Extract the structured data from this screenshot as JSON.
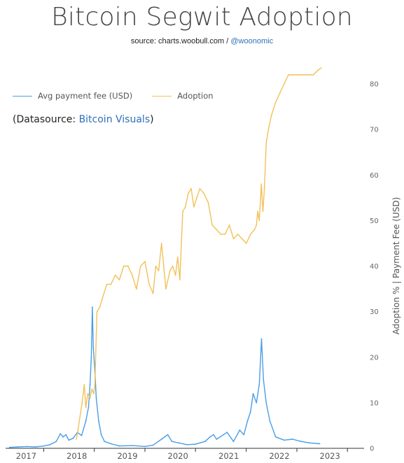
{
  "header": {
    "title": "Bitcoin Segwit Adoption",
    "source_prefix": "source: charts.woobull.com / ",
    "source_handle": "@woonomic"
  },
  "datasource": {
    "prefix": "(Datasource: ",
    "link": "Bitcoin Visuals",
    "suffix": ")"
  },
  "colors": {
    "fee": "#4a9ee6",
    "adoption": "#f2c15a",
    "link": "#2f6fb8"
  },
  "chart_data": {
    "type": "line",
    "title": "Bitcoin Segwit Adoption",
    "xlabel": "",
    "ylabel": "Adoption % | Payment Fee (USD)",
    "x_range": [
      "2016-04-01",
      "2023-05-01"
    ],
    "ylim": [
      0,
      87
    ],
    "y_ticks": [
      0,
      10,
      20,
      30,
      40,
      50,
      60,
      70,
      80
    ],
    "y_tick_labels": [
      "0",
      "10",
      "20",
      "30",
      "40",
      "50",
      "60",
      "70",
      "80"
    ],
    "x_tick_labels": [
      "2017",
      "2018",
      "2019",
      "2020",
      "2021",
      "2022",
      "2023"
    ],
    "grid": false,
    "legend_position": "top-left",
    "series": [
      {
        "name": "Avg payment fee (USD)",
        "x": [
          "2016-05-01",
          "2016-07-01",
          "2016-09-01",
          "2016-11-01",
          "2017-01-01",
          "2017-02-15",
          "2017-04-01",
          "2017-05-01",
          "2017-05-20",
          "2017-06-10",
          "2017-07-01",
          "2017-08-01",
          "2017-09-01",
          "2017-10-01",
          "2017-11-01",
          "2017-11-20",
          "2017-12-01",
          "2017-12-10",
          "2017-12-18",
          "2017-12-25",
          "2018-01-05",
          "2018-01-15",
          "2018-02-01",
          "2018-02-20",
          "2018-03-15",
          "2018-05-01",
          "2018-07-01",
          "2018-10-01",
          "2019-01-01",
          "2019-03-01",
          "2019-05-01",
          "2019-06-15",
          "2019-07-15",
          "2019-09-01",
          "2019-11-01",
          "2020-01-01",
          "2020-03-10",
          "2020-04-15",
          "2020-05-10",
          "2020-06-01",
          "2020-08-15",
          "2020-10-01",
          "2020-11-15",
          "2020-12-15",
          "2021-01-10",
          "2021-02-01",
          "2021-02-20",
          "2021-03-15",
          "2021-04-05",
          "2021-04-21",
          "2021-05-05",
          "2021-05-25",
          "2021-06-20",
          "2021-08-01",
          "2021-10-01",
          "2021-12-01",
          "2022-02-01",
          "2022-04-01",
          "2022-06-15"
        ],
        "values": [
          0.2,
          0.3,
          0.4,
          0.3,
          0.5,
          0.8,
          1.5,
          3.2,
          2.5,
          3.0,
          1.8,
          2.2,
          3.5,
          2.8,
          6.0,
          9.0,
          14.0,
          20.0,
          31.0,
          22.0,
          17.0,
          11.0,
          6.0,
          3.0,
          1.5,
          1.0,
          0.5,
          0.6,
          0.4,
          0.7,
          2.0,
          3.0,
          1.5,
          1.2,
          0.8,
          0.9,
          1.5,
          2.5,
          3.0,
          2.0,
          3.5,
          1.5,
          4.0,
          3.0,
          6.0,
          8.0,
          12.0,
          10.0,
          14.0,
          24.0,
          15.0,
          10.0,
          6.0,
          2.5,
          1.8,
          2.0,
          1.5,
          1.2,
          1.0
        ]
      },
      {
        "name": "Adoption",
        "x": [
          "2017-08-24",
          "2017-09-05",
          "2017-09-20",
          "2017-10-05",
          "2017-10-20",
          "2017-11-01",
          "2017-11-15",
          "2017-12-01",
          "2017-12-15",
          "2017-12-28",
          "2018-01-05",
          "2018-01-20",
          "2018-02-10",
          "2018-03-01",
          "2018-04-01",
          "2018-05-01",
          "2018-06-01",
          "2018-07-01",
          "2018-08-01",
          "2018-09-01",
          "2018-10-01",
          "2018-11-01",
          "2018-12-01",
          "2019-01-01",
          "2019-02-01",
          "2019-03-01",
          "2019-03-20",
          "2019-04-10",
          "2019-05-01",
          "2019-06-01",
          "2019-07-01",
          "2019-07-20",
          "2019-08-10",
          "2019-08-25",
          "2019-09-10",
          "2019-10-01",
          "2019-10-20",
          "2019-11-10",
          "2019-12-01",
          "2019-12-20",
          "2020-01-10",
          "2020-02-01",
          "2020-03-01",
          "2020-04-01",
          "2020-05-01",
          "2020-06-01",
          "2020-07-01",
          "2020-08-01",
          "2020-09-01",
          "2020-10-01",
          "2020-11-01",
          "2020-12-01",
          "2021-01-01",
          "2021-02-01",
          "2021-03-01",
          "2021-03-15",
          "2021-03-25",
          "2021-04-05",
          "2021-04-20",
          "2021-05-01",
          "2021-05-12",
          "2021-05-25",
          "2021-06-10",
          "2021-07-01",
          "2021-08-01",
          "2021-09-01",
          "2021-10-01",
          "2021-11-01",
          "2021-12-01",
          "2022-01-01",
          "2022-02-01",
          "2022-03-01",
          "2022-04-01",
          "2022-05-01",
          "2022-06-01",
          "2022-06-25"
        ],
        "values": [
          2,
          4,
          7,
          10,
          14,
          9,
          12,
          11,
          13,
          12,
          14,
          30,
          31,
          33,
          36,
          36,
          38,
          37,
          40,
          40,
          38,
          35,
          40,
          41,
          36,
          34,
          40,
          39,
          45,
          35,
          39,
          40,
          38,
          42,
          37,
          52,
          53,
          56,
          57,
          53,
          55,
          57,
          56,
          54,
          49,
          48,
          47,
          47,
          49,
          46,
          47,
          46,
          45,
          47,
          48,
          49,
          52,
          50,
          58,
          52,
          57,
          67,
          70,
          73,
          76,
          78,
          80,
          82,
          82,
          82,
          82,
          82,
          82,
          82,
          83,
          83.5
        ]
      }
    ]
  }
}
